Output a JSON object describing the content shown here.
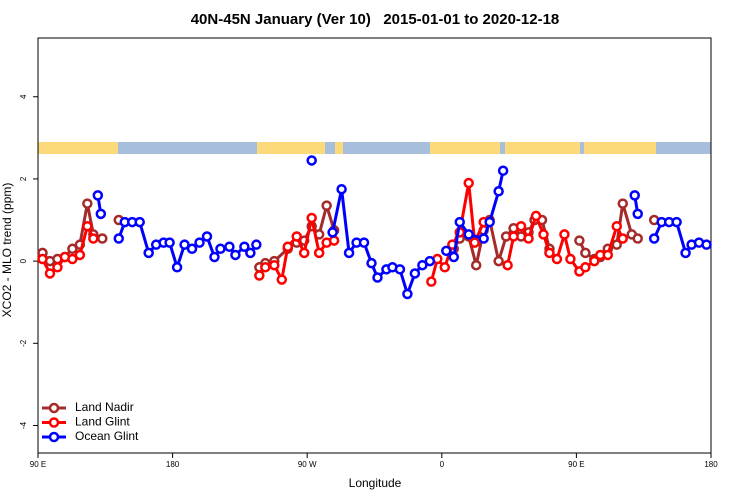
{
  "chart_data": {
    "type": "line",
    "title": "40N-45N January (Ver 10)   2015-01-01 to 2020-12-18",
    "xlabel": "Longitude",
    "ylabel": "XCO2 - MLO trend (ppm)",
    "xlim": [
      90,
      540
    ],
    "ylim": [
      -4.67,
      5.43
    ],
    "xticks": [
      {
        "value": 90,
        "label": "90 E"
      },
      180,
      {
        "value": 270,
        "label": "90 W"
      },
      {
        "value": 360,
        "label": "0"
      },
      {
        "value": 450,
        "label": "90 E"
      },
      {
        "value": 540,
        "label": "180"
      }
    ],
    "yticks": [
      -4,
      -2,
      0,
      2,
      4
    ],
    "legend": "bottom-left",
    "series": [
      {
        "name": "Land Nadir",
        "color": "#a52a2a",
        "x": [
          93,
          98,
          103,
          108,
          113,
          118,
          123,
          127,
          133,
          null,
          144,
          null,
          238,
          242,
          248,
          257,
          263,
          268,
          273,
          278,
          283,
          288,
          null,
          368,
          372,
          378,
          383,
          388,
          392,
          398,
          403,
          408,
          413,
          418,
          422,
          427,
          432,
          null,
          452,
          456,
          462,
          466,
          471,
          477,
          481,
          487,
          491,
          null,
          502
        ],
        "values": [
          0.2,
          0.0,
          0.05,
          0.1,
          0.3,
          0.4,
          1.4,
          0.65,
          0.55,
          null,
          1.0,
          null,
          -0.15,
          -0.05,
          0.0,
          0.3,
          0.45,
          0.5,
          0.85,
          0.65,
          1.35,
          0.75,
          null,
          0.3,
          0.55,
          0.6,
          -0.1,
          0.75,
          1.0,
          0.0,
          0.6,
          0.8,
          0.6,
          0.7,
          1.0,
          1.0,
          0.3,
          null,
          0.5,
          0.2,
          0.05,
          0.1,
          0.3,
          0.4,
          1.4,
          0.65,
          0.55,
          null,
          1.0
        ]
      },
      {
        "name": "Land Glint",
        "color": "#ff0000",
        "x": [
          93,
          98,
          103,
          108,
          113,
          118,
          123,
          127,
          null,
          238,
          242,
          248,
          253,
          257,
          263,
          268,
          273,
          278,
          283,
          288,
          null,
          353,
          357,
          362,
          367,
          372,
          378,
          382,
          388,
          null,
          404,
          408,
          413,
          418,
          423,
          428,
          432,
          437,
          442,
          446,
          452,
          456,
          462,
          466,
          471,
          477,
          481
        ],
        "values": [
          0.05,
          -0.3,
          -0.15,
          0.1,
          0.05,
          0.15,
          0.85,
          0.55,
          null,
          -0.35,
          -0.15,
          -0.1,
          -0.45,
          0.35,
          0.6,
          0.2,
          1.05,
          0.2,
          0.45,
          0.5,
          null,
          -0.5,
          0.05,
          -0.15,
          0.4,
          0.7,
          1.9,
          0.45,
          0.95,
          null,
          -0.1,
          0.6,
          0.85,
          0.55,
          1.1,
          0.65,
          0.2,
          0.05,
          0.65,
          0.05,
          -0.25,
          -0.15,
          0.0,
          0.15,
          0.15,
          0.85,
          0.55
        ]
      },
      {
        "name": "Ocean Glint",
        "color": "#0000ff",
        "x": [
          130,
          132,
          null,
          144,
          148,
          153,
          158,
          164,
          169,
          174,
          178,
          183,
          188,
          193,
          198,
          203,
          208,
          212,
          218,
          222,
          228,
          232,
          236,
          null,
          273,
          null,
          287,
          293,
          298,
          303,
          308,
          313,
          317,
          323,
          327,
          332,
          337,
          342,
          347,
          352,
          null,
          363,
          368,
          372,
          378,
          388,
          392,
          398,
          401,
          null,
          489,
          491,
          null,
          502,
          507,
          512,
          517,
          523,
          527,
          532,
          537
        ],
        "values": [
          1.6,
          1.15,
          null,
          0.55,
          0.95,
          0.95,
          0.95,
          0.2,
          0.4,
          0.45,
          0.45,
          -0.15,
          0.4,
          0.3,
          0.45,
          0.6,
          0.1,
          0.3,
          0.35,
          0.15,
          0.35,
          0.2,
          0.4,
          null,
          2.45,
          null,
          0.7,
          1.75,
          0.2,
          0.45,
          0.45,
          -0.05,
          -0.4,
          -0.2,
          -0.15,
          -0.2,
          -0.8,
          -0.3,
          -0.1,
          0.0,
          null,
          0.25,
          0.1,
          0.95,
          0.65,
          0.55,
          0.95,
          1.7,
          2.2,
          null,
          1.6,
          1.15,
          null,
          0.55,
          0.95,
          0.95,
          0.95,
          0.2,
          0.4,
          0.45,
          0.4
        ]
      }
    ]
  }
}
